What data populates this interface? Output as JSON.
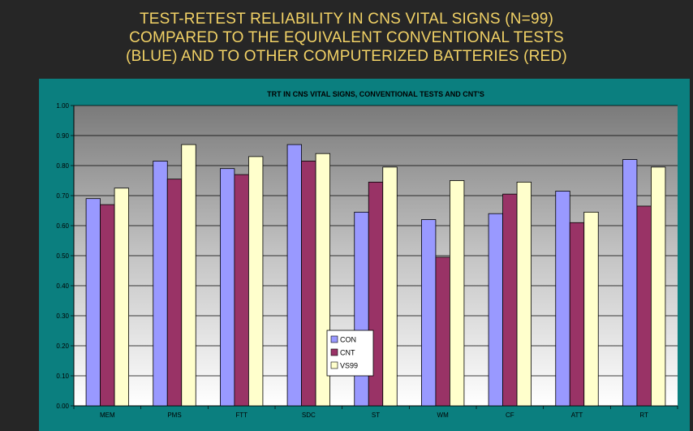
{
  "slide": {
    "title_lines": [
      "TEST-RETEST RELIABILITY IN CNS VITAL SIGNS (N=99)",
      "COMPARED TO THE EQUIVALENT CONVENTIONAL TESTS",
      "(BLUE) AND TO OTHER COMPUTERIZED BATTERIES (RED)"
    ],
    "title_color": "#F2D266",
    "background_color": "#262626",
    "panel_color": "#0B7F7F"
  },
  "chart_data": {
    "type": "bar",
    "title": "TRT IN CNS VITAL SIGNS, CONVENTIONAL TESTS AND CNT'S",
    "xlabel": "",
    "ylabel": "",
    "categories": [
      "MEM",
      "PMS",
      "FTT",
      "SDC",
      "ST",
      "WM",
      "CF",
      "ATT",
      "RT"
    ],
    "series": [
      {
        "name": "CON",
        "color": "#9999FF",
        "values": [
          0.69,
          0.815,
          0.79,
          0.87,
          0.645,
          0.62,
          0.64,
          0.715,
          0.82
        ]
      },
      {
        "name": "CNT",
        "color": "#993366",
        "values": [
          0.67,
          0.755,
          0.77,
          0.815,
          0.745,
          0.495,
          0.705,
          0.61,
          0.665
        ]
      },
      {
        "name": "VS99",
        "color": "#FFFFCC",
        "values": [
          0.725,
          0.87,
          0.83,
          0.84,
          0.795,
          0.75,
          0.745,
          0.645,
          0.795
        ]
      }
    ],
    "ylim": [
      0,
      1
    ],
    "yticks": [
      "0.00",
      "0.10",
      "0.20",
      "0.30",
      "0.40",
      "0.50",
      "0.60",
      "0.70",
      "0.80",
      "0.90",
      "1.00"
    ],
    "grid": true,
    "legend_position": "lower-center"
  }
}
